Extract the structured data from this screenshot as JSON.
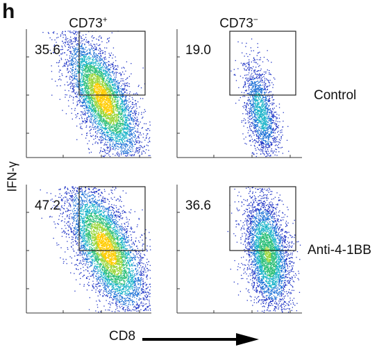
{
  "panel_letter": "h",
  "columns": [
    {
      "label": "CD73",
      "sup": "+"
    },
    {
      "label": "CD73",
      "sup": "−"
    }
  ],
  "rows": [
    "Control",
    "Anti-4-1BB"
  ],
  "ylabel": "IFN-γ",
  "xlabel": "CD8",
  "chart_data": [
    {
      "type": "scatter",
      "title": "CD73+ / Control",
      "gate_percentage": "35.6",
      "xlabel": "CD8",
      "ylabel": "IFN-γ"
    },
    {
      "type": "scatter",
      "title": "CD73− / Control",
      "gate_percentage": "19.0",
      "xlabel": "CD8",
      "ylabel": "IFN-γ"
    },
    {
      "type": "scatter",
      "title": "CD73+ / Anti-4-1BB",
      "gate_percentage": "47.2",
      "xlabel": "CD8",
      "ylabel": "IFN-γ"
    },
    {
      "type": "scatter",
      "title": "CD73− / Anti-4-1BB",
      "gate_percentage": "36.6",
      "xlabel": "CD8",
      "ylabel": "IFN-γ"
    }
  ]
}
